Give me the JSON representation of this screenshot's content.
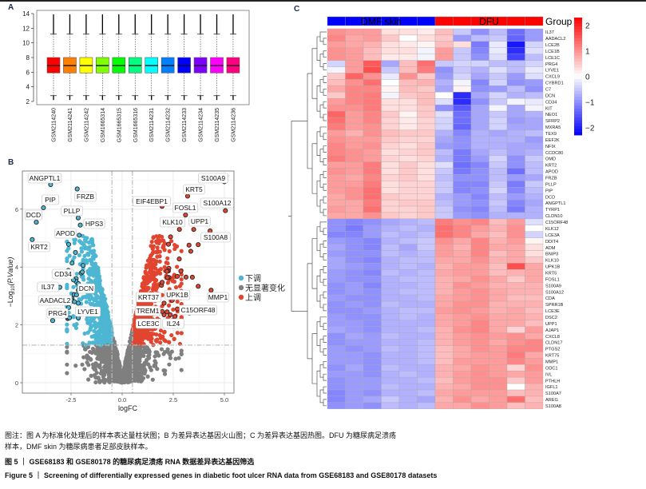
{
  "panels": {
    "a": "A",
    "b": "B",
    "c": "C"
  },
  "chart_data": [
    {
      "type": "box",
      "panel": "A",
      "categories": [
        "GSM2114240",
        "GSM2114241",
        "GSM2114242",
        "GSM1665314",
        "GSM1665315",
        "GSM1665316",
        "GSM2114231",
        "GSM2114232",
        "GSM2114233",
        "GSM2114234",
        "GSM2114235",
        "GSM2114236"
      ],
      "colors": [
        "#FF0000",
        "#FF8000",
        "#FFFF00",
        "#80FF00",
        "#00FF00",
        "#00FF80",
        "#00FFFF",
        "#0080FF",
        "#0000FF",
        "#8000FF",
        "#FF00FF",
        "#FF0080"
      ],
      "stats": {
        "min": 2.8,
        "q1": 5.9,
        "median": 6.9,
        "q3": 8.0,
        "max": 11.2,
        "outlier_low": 2.2,
        "outlier_high": 13.9
      },
      "yticks": [
        2,
        4,
        6,
        8,
        10,
        12,
        14
      ],
      "ylim": [
        1.5,
        14.4
      ]
    },
    {
      "type": "scatter",
      "panel": "B",
      "title": "",
      "xlabel": "logFC",
      "ylabel_main": "−Log",
      "ylabel_sub": "10",
      "ylabel_rest": "(P.Value)",
      "xlim": [
        -4.9,
        5.5
      ],
      "ylim": [
        -0.35,
        7.3
      ],
      "xticks": [
        "-2.5",
        "0.0",
        "2.5",
        "5.0"
      ],
      "xtick_values": [
        -2.5,
        0,
        2.5,
        5
      ],
      "yticks": [
        "0",
        "2",
        "4",
        "6"
      ],
      "ytick_values": [
        0,
        2,
        4,
        6
      ],
      "thresholds": {
        "logFC": 0.5,
        "neglog10p": 1.3
      },
      "legend": [
        {
          "label": "下调",
          "color": "#4DB6D2"
        },
        {
          "label": "无显著变化",
          "color": "#7F7F7F"
        },
        {
          "label": "上调",
          "color": "#E2452F"
        }
      ],
      "labeled_points": [
        {
          "gene": "ANGPTL1",
          "x": -3.5,
          "y": 6.85,
          "group": "down"
        },
        {
          "gene": "FRZB",
          "x": -2.2,
          "y": 6.7,
          "group": "down"
        },
        {
          "gene": "PIP",
          "x": -3.85,
          "y": 6.05,
          "group": "down"
        },
        {
          "gene": "DCD",
          "x": -4.2,
          "y": 5.55,
          "group": "down"
        },
        {
          "gene": "PLLP",
          "x": -2.15,
          "y": 5.7,
          "group": "down"
        },
        {
          "gene": "HPS3",
          "x": -2.05,
          "y": 5.45,
          "group": "down"
        },
        {
          "gene": "APOD",
          "x": -2.1,
          "y": 5.1,
          "group": "down"
        },
        {
          "gene": "KRT2",
          "x": -4.4,
          "y": 4.95,
          "group": "down"
        },
        {
          "gene": "CD34",
          "x": -2.25,
          "y": 3.6,
          "group": "down"
        },
        {
          "gene": "IL37",
          "x": -3.05,
          "y": 3.3,
          "group": "down"
        },
        {
          "gene": "DCN",
          "x": -2.25,
          "y": 3.5,
          "group": "down"
        },
        {
          "gene": "AADACL2",
          "x": -2.35,
          "y": 3.05,
          "group": "down"
        },
        {
          "gene": "LYVE1",
          "x": -2.15,
          "y": 2.75,
          "group": "down"
        },
        {
          "gene": "PRG4",
          "x": -3.4,
          "y": 2.15,
          "group": "down"
        },
        {
          "gene": "S100A9",
          "x": 5.0,
          "y": 6.95,
          "group": "up"
        },
        {
          "gene": "KRT5",
          "x": 3.2,
          "y": 6.45,
          "group": "up"
        },
        {
          "gene": "EIF4EBP1",
          "x": 1.95,
          "y": 6.1,
          "group": "up"
        },
        {
          "gene": "FOSL1",
          "x": 3.1,
          "y": 5.8,
          "group": "up"
        },
        {
          "gene": "S100A12",
          "x": 5.05,
          "y": 5.95,
          "group": "up"
        },
        {
          "gene": "KLK10",
          "x": 2.8,
          "y": 5.3,
          "group": "up"
        },
        {
          "gene": "UPP1",
          "x": 3.5,
          "y": 5.3,
          "group": "up"
        },
        {
          "gene": "S100A8",
          "x": 4.3,
          "y": 5.25,
          "group": "up"
        },
        {
          "gene": "KRT37",
          "x": 2.05,
          "y": 2.75,
          "group": "up"
        },
        {
          "gene": "UPK1B",
          "x": 2.45,
          "y": 2.85,
          "group": "up"
        },
        {
          "gene": "MMP1",
          "x": 4.35,
          "y": 3.2,
          "group": "up"
        },
        {
          "gene": "TREM1",
          "x": 2.2,
          "y": 2.45,
          "group": "up"
        },
        {
          "gene": "C15ORF48",
          "x": 2.7,
          "y": 2.55,
          "group": "up"
        },
        {
          "gene": "LCE3C",
          "x": 2.05,
          "y": 2.35,
          "group": "up"
        },
        {
          "gene": "IL24",
          "x": 2.35,
          "y": 2.35,
          "group": "up"
        }
      ]
    },
    {
      "type": "heatmap",
      "panel": "C",
      "group_title": "Group",
      "groups": [
        {
          "label": "DMF skin",
          "color": "#0000FF",
          "n": 6
        },
        {
          "label": "DFU",
          "color": "#FF0000",
          "n": 6
        }
      ],
      "colorbar_ticks": [
        "2",
        "1",
        "0",
        "−1",
        "−2"
      ],
      "colorbar_values": [
        2,
        1,
        0,
        -1,
        -2
      ],
      "range": [
        -2.3,
        2.3
      ],
      "low_color": "#0000FF",
      "mid_color": "#FFFFFF",
      "high_color": "#FF0000",
      "genes": [
        "IL37",
        "AADACL2",
        "LCE2B",
        "LCE1B",
        "LCE1C",
        "PRG4",
        "LYVE1",
        "CXCL9",
        "CYBRD1",
        "C7",
        "DCN",
        "CD34",
        "KIT",
        "NEO1",
        "SFRP2",
        "MXRA5",
        "TEX9",
        "EEF2K",
        "NFIX",
        "CCDC80",
        "OMD",
        "KRT2",
        "APOD",
        "FRZB",
        "PLLP",
        "PIP",
        "DCD",
        "ANGPTL1",
        "TYRP1",
        "CLDN10",
        "C15ORF48",
        "KLK12",
        "LCE3A",
        "DDIT4",
        "ADM",
        "BNIP3",
        "KLK10",
        "UPK1B",
        "KRT5",
        "FOSL1",
        "S100A9",
        "S100A12",
        "CDA",
        "SPRR1B",
        "LCE3E",
        "DSC2",
        "UPP1",
        "AJAP1",
        "CXCL8",
        "CLDN17",
        "PTGS2",
        "KRT75",
        "MMP1",
        "ODC1",
        "IVL",
        "PTHLH",
        "IGFL1",
        "S100A7",
        "AREG",
        "S100A8"
      ],
      "values": [
        [
          1.0,
          0.9,
          0.9,
          0.3,
          0.3,
          0.2,
          0.6,
          -0.5,
          -1.0,
          -0.6,
          -1.3,
          -0.9
        ],
        [
          1.1,
          0.8,
          0.9,
          0.5,
          0.0,
          0.3,
          0.5,
          -0.9,
          -0.6,
          -0.5,
          -1.4,
          -0.9
        ],
        [
          0.9,
          0.8,
          0.7,
          0.3,
          0.2,
          0.1,
          0.6,
          0.3,
          -1.2,
          -0.2,
          -2.1,
          -0.4
        ],
        [
          1.0,
          0.9,
          0.6,
          0.3,
          0.3,
          -0.1,
          0.9,
          -0.5,
          -1.1,
          -0.2,
          -1.9,
          -0.3
        ],
        [
          1.0,
          0.9,
          0.6,
          0.2,
          0.2,
          -0.1,
          0.9,
          -0.5,
          -1.0,
          -0.3,
          -1.7,
          -0.6
        ],
        [
          -0.4,
          0.9,
          1.5,
          -0.8,
          0.6,
          1.3,
          -0.5,
          -0.4,
          -0.4,
          -0.6,
          -0.6,
          -0.4
        ],
        [
          -0.1,
          0.9,
          1.6,
          -0.5,
          0.6,
          1.2,
          -1.0,
          -0.5,
          -0.7,
          -0.3,
          -0.6,
          -0.2
        ],
        [
          0.5,
          1.4,
          1.0,
          -0.2,
          1.0,
          0.5,
          -0.9,
          -0.4,
          -0.8,
          -0.5,
          -0.9,
          -0.3
        ],
        [
          0.6,
          1.0,
          1.3,
          0.0,
          0.6,
          0.7,
          -0.7,
          -0.1,
          -1.1,
          -0.4,
          -1.0,
          -0.9
        ],
        [
          0.8,
          1.1,
          1.1,
          0.1,
          0.6,
          0.5,
          -0.8,
          0.1,
          -1.0,
          -0.9,
          -0.6,
          -1.0
        ],
        [
          0.5,
          1.1,
          1.2,
          -0.1,
          0.5,
          0.6,
          0.0,
          -1.9,
          -0.8,
          -0.4,
          -0.7,
          -0.6
        ],
        [
          0.9,
          1.1,
          1.2,
          0.3,
          0.3,
          0.6,
          -0.3,
          -1.9,
          -1.0,
          -0.5,
          -0.1,
          -0.2
        ],
        [
          1.0,
          1.0,
          1.2,
          0.3,
          0.3,
          0.5,
          -1.0,
          -1.5,
          -0.8,
          -0.1,
          -0.8,
          -0.1
        ],
        [
          1.4,
          0.9,
          1.1,
          0.5,
          0.1,
          0.5,
          -0.3,
          -1.3,
          -0.8,
          -0.5,
          -0.8,
          -0.7
        ],
        [
          1.3,
          0.9,
          1.1,
          0.4,
          0.2,
          0.4,
          -0.4,
          -1.3,
          -0.8,
          -0.4,
          -0.9,
          -0.8
        ],
        [
          1.2,
          0.9,
          1.0,
          0.4,
          0.2,
          0.4,
          -0.4,
          -1.4,
          -0.8,
          -0.4,
          -0.8,
          -0.8
        ],
        [
          0.9,
          0.7,
          1.0,
          0.6,
          0.5,
          0.5,
          -0.7,
          -1.1,
          -0.7,
          -0.8,
          -0.7,
          -0.6
        ],
        [
          1.0,
          0.9,
          0.9,
          0.5,
          0.4,
          0.4,
          -0.8,
          -1.0,
          -0.7,
          -0.7,
          -0.7,
          -0.9
        ],
        [
          1.1,
          0.9,
          1.0,
          0.4,
          0.3,
          0.5,
          -0.9,
          -1.0,
          -0.7,
          -0.7,
          -0.8,
          -0.8
        ],
        [
          1.1,
          1.0,
          0.9,
          0.3,
          0.4,
          0.5,
          -0.6,
          -1.2,
          -0.8,
          -0.6,
          -0.8,
          -0.7
        ],
        [
          1.2,
          1.0,
          0.9,
          0.4,
          0.3,
          0.4,
          -0.7,
          -1.2,
          -0.9,
          -0.4,
          -1.0,
          -0.5
        ],
        [
          0.9,
          0.9,
          1.2,
          0.3,
          0.5,
          0.3,
          -0.3,
          -1.3,
          -1.1,
          -0.5,
          -1.0,
          -0.6
        ],
        [
          1.0,
          0.9,
          1.2,
          0.3,
          0.5,
          0.3,
          -0.5,
          -1.2,
          -1.0,
          -0.6,
          -1.3,
          -0.6
        ],
        [
          0.9,
          0.8,
          1.1,
          0.4,
          0.5,
          0.3,
          -0.6,
          -1.0,
          -1.0,
          -0.6,
          -0.9,
          -0.8
        ],
        [
          0.9,
          0.9,
          1.2,
          0.3,
          0.4,
          0.4,
          -0.5,
          -1.1,
          -1.1,
          -0.5,
          -1.2,
          -0.5
        ],
        [
          0.9,
          1.0,
          1.3,
          0.3,
          0.4,
          0.4,
          -0.5,
          -1.1,
          -1.0,
          -0.4,
          -1.1,
          -0.6
        ],
        [
          0.8,
          1.0,
          1.3,
          0.5,
          0.4,
          0.4,
          -0.7,
          -0.9,
          -1.1,
          -0.6,
          -0.9,
          -0.7
        ],
        [
          0.8,
          0.8,
          1.2,
          0.4,
          0.5,
          0.5,
          -0.6,
          -0.9,
          -1.0,
          -0.5,
          -1.1,
          -0.8
        ],
        [
          0.9,
          0.8,
          1.3,
          0.4,
          0.4,
          0.5,
          -0.5,
          -1.0,
          -1.1,
          -0.6,
          -1.2,
          -0.7
        ],
        [
          0.8,
          0.8,
          1.0,
          0.5,
          0.4,
          0.5,
          -0.5,
          -0.9,
          -1.0,
          -0.7,
          -0.7,
          -0.7
        ],
        [
          -1.0,
          -1.1,
          -1.0,
          -0.8,
          -0.7,
          -0.6,
          1.2,
          1.0,
          1.1,
          0.6,
          0.9,
          -0.3
        ],
        [
          -1.0,
          -1.2,
          -0.9,
          -0.7,
          -0.6,
          -0.7,
          1.3,
          1.1,
          0.9,
          0.7,
          1.0,
          0.0
        ],
        [
          -1.1,
          -1.1,
          -0.9,
          -0.6,
          -0.7,
          -0.6,
          1.3,
          1.1,
          0.8,
          0.6,
          1.0,
          -0.4
        ],
        [
          -0.9,
          -1.0,
          -1.1,
          -0.7,
          -0.6,
          -0.5,
          1.0,
          0.8,
          1.1,
          0.7,
          0.9,
          0.1
        ],
        [
          -0.8,
          -1.0,
          -1.1,
          -0.6,
          -0.8,
          -0.5,
          0.9,
          0.7,
          1.1,
          0.8,
          0.8,
          0.3
        ],
        [
          -0.9,
          -1.0,
          -1.0,
          -0.6,
          -0.7,
          -0.6,
          0.9,
          0.8,
          1.1,
          0.6,
          0.8,
          0.3
        ],
        [
          -0.8,
          -1.0,
          -1.1,
          -0.7,
          -0.6,
          -0.6,
          0.8,
          0.8,
          1.0,
          0.7,
          0.8,
          0.5
        ],
        [
          -0.8,
          -0.9,
          -1.0,
          -0.7,
          -0.6,
          -0.7,
          0.7,
          0.9,
          0.9,
          0.6,
          1.6,
          0.8
        ],
        [
          -0.9,
          -1.0,
          -1.1,
          -0.6,
          -0.7,
          -0.6,
          0.8,
          0.9,
          0.9,
          0.6,
          0.7,
          0.8
        ],
        [
          -0.9,
          -1.0,
          -1.0,
          -0.7,
          -0.6,
          -0.6,
          0.7,
          0.8,
          1.0,
          0.8,
          0.5,
          0.8
        ],
        [
          -1.0,
          -0.9,
          -1.1,
          -0.7,
          -0.7,
          -0.6,
          0.7,
          1.0,
          0.9,
          0.7,
          0.7,
          0.7
        ],
        [
          -1.0,
          -0.9,
          -1.0,
          -0.7,
          -0.6,
          -0.6,
          0.7,
          0.9,
          1.0,
          0.8,
          0.7,
          0.7
        ],
        [
          -0.9,
          -1.0,
          -1.0,
          -0.7,
          -0.7,
          -0.6,
          0.8,
          0.9,
          1.0,
          0.8,
          0.6,
          0.6
        ],
        [
          -1.0,
          -0.9,
          -1.0,
          -0.6,
          -0.7,
          -0.7,
          0.8,
          1.0,
          1.0,
          0.7,
          0.7,
          0.7
        ],
        [
          -1.0,
          -1.0,
          -0.9,
          -0.7,
          -0.6,
          -0.6,
          0.9,
          1.0,
          0.9,
          0.7,
          0.8,
          0.6
        ],
        [
          -0.9,
          -1.0,
          -1.0,
          -0.7,
          -0.6,
          -0.7,
          0.8,
          0.9,
          1.0,
          0.8,
          0.8,
          0.7
        ],
        [
          -0.9,
          -0.9,
          -1.0,
          -0.7,
          -0.7,
          -0.7,
          0.8,
          0.9,
          1.1,
          0.8,
          0.8,
          0.6
        ],
        [
          -0.8,
          -0.9,
          -1.0,
          -0.7,
          -0.7,
          -0.6,
          0.7,
          1.0,
          1.1,
          0.8,
          0.4,
          0.9
        ],
        [
          -1.0,
          -0.8,
          -0.9,
          -0.6,
          -0.7,
          -0.7,
          0.7,
          0.9,
          1.0,
          0.9,
          1.0,
          0.8
        ],
        [
          -1.0,
          -0.9,
          -0.9,
          -0.7,
          -0.7,
          -0.6,
          0.7,
          0.9,
          1.0,
          0.8,
          1.0,
          1.1
        ],
        [
          -0.9,
          -1.0,
          -0.9,
          -0.6,
          -0.7,
          -0.6,
          0.6,
          0.8,
          1.0,
          0.9,
          1.1,
          1.1
        ],
        [
          -0.9,
          -0.9,
          -1.0,
          -0.7,
          -0.7,
          -0.6,
          0.6,
          0.8,
          0.9,
          0.9,
          1.2,
          0.8
        ],
        [
          -0.9,
          -0.9,
          -1.0,
          -0.7,
          -0.7,
          -0.6,
          0.6,
          0.9,
          0.9,
          0.9,
          1.1,
          0.9
        ],
        [
          -1.0,
          -0.8,
          -1.0,
          -0.6,
          -0.7,
          -0.7,
          0.7,
          0.8,
          1.0,
          0.9,
          0.4,
          1.0
        ],
        [
          -0.9,
          -0.9,
          -1.0,
          -0.7,
          -0.6,
          -0.7,
          0.7,
          0.9,
          1.0,
          0.9,
          0.8,
          0.9
        ],
        [
          -1.0,
          -0.9,
          -0.9,
          -0.7,
          -0.7,
          -0.6,
          0.6,
          0.9,
          1.0,
          1.0,
          0.5,
          0.9
        ],
        [
          -1.0,
          -0.9,
          -0.9,
          -0.6,
          -0.7,
          -0.7,
          0.7,
          0.8,
          1.0,
          1.0,
          0.0,
          0.7
        ],
        [
          -1.1,
          -0.9,
          -1.0,
          -0.7,
          -0.7,
          -0.6,
          0.8,
          0.9,
          0.9,
          0.9,
          0.6,
          0.7
        ],
        [
          -1.1,
          -0.9,
          -0.8,
          -0.5,
          -0.7,
          -0.8,
          0.7,
          1.0,
          0.8,
          0.9,
          1.3,
          0.6
        ],
        [
          -1.0,
          -0.9,
          -1.0,
          -0.6,
          -0.7,
          -0.6,
          0.8,
          0.8,
          1.0,
          0.9,
          0.6,
          0.7
        ]
      ]
    }
  ],
  "caption": {
    "note": "图注：图 A 为标准化处理后的样本表达量柱状图；B 为差异表达基因火山图；C 为差异表达基因热图。DFU 为糖尿病足溃疡样本，DMF skin 为糖尿病患者足部皮肤样本。",
    "title_zh": "图 5 ｜ GSE68183 和 GSE80178 的糖尿病足溃疡 RNA 数据差异表达基因筛选",
    "title_en": "Figure 5 ｜ Screening of differentially expressed genes in diabetic foot ulcer RNA data from GSE68183 and GSE80178 datasets"
  }
}
